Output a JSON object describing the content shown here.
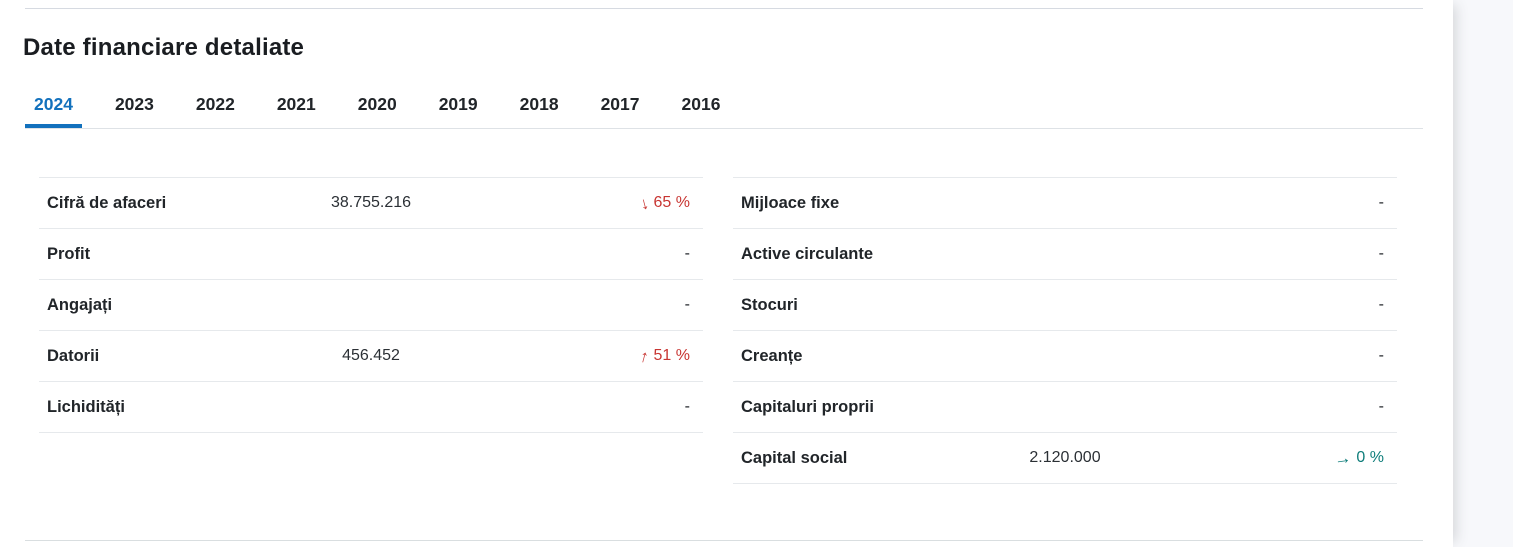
{
  "section": {
    "title": "Date financiare detaliate"
  },
  "tabs": [
    {
      "label": "2024",
      "active": true
    },
    {
      "label": "2023",
      "active": false
    },
    {
      "label": "2022",
      "active": false
    },
    {
      "label": "2021",
      "active": false
    },
    {
      "label": "2020",
      "active": false
    },
    {
      "label": "2019",
      "active": false
    },
    {
      "label": "2018",
      "active": false
    },
    {
      "label": "2017",
      "active": false
    },
    {
      "label": "2016",
      "active": false
    }
  ],
  "icons": {
    "trend_down": "↓",
    "trend_up": "↑",
    "trend_flat": "→"
  },
  "colors": {
    "accent_blue": "#1271bd",
    "trend_negative_red": "#c83532",
    "trend_neutral_teal": "#0e7d7a"
  },
  "tables": {
    "left": {
      "rows": [
        {
          "label": "Cifră de afaceri",
          "value": "38.755.216",
          "trend": "65 %",
          "trend_direction": "down"
        },
        {
          "label": "Profit",
          "value": "",
          "trend": "-",
          "trend_direction": "none"
        },
        {
          "label": "Angajați",
          "value": "",
          "trend": "-",
          "trend_direction": "none"
        },
        {
          "label": "Datorii",
          "value": "456.452",
          "trend": "51 %",
          "trend_direction": "up"
        },
        {
          "label": "Lichidități",
          "value": "",
          "trend": "-",
          "trend_direction": "none"
        }
      ]
    },
    "right": {
      "rows": [
        {
          "label": "Mijloace fixe",
          "value": "",
          "trend": "-",
          "trend_direction": "none"
        },
        {
          "label": "Active circulante",
          "value": "",
          "trend": "-",
          "trend_direction": "none"
        },
        {
          "label": "Stocuri",
          "value": "",
          "trend": "-",
          "trend_direction": "none"
        },
        {
          "label": "Creanțe",
          "value": "",
          "trend": "-",
          "trend_direction": "none"
        },
        {
          "label": "Capitaluri proprii",
          "value": "",
          "trend": "-",
          "trend_direction": "none"
        },
        {
          "label": "Capital social",
          "value": "2.120.000",
          "trend": "0 %",
          "trend_direction": "flat"
        }
      ]
    }
  }
}
